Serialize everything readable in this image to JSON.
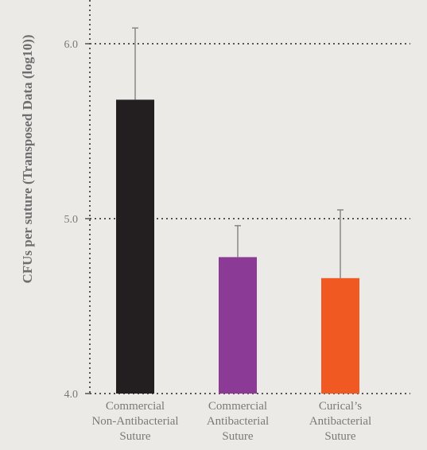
{
  "chart_data": {
    "type": "bar",
    "title": "",
    "xlabel": "",
    "ylabel": "CFUs per suture (Transposed Data (log10))",
    "ylim": [
      4.0,
      6.2
    ],
    "yticks": [
      "4.0",
      "5.0",
      "6.0"
    ],
    "grid": "horizontal dotted at y ticks",
    "legend": "none",
    "categories": [
      [
        "Commercial",
        "Non-Antibacterial",
        "Suture"
      ],
      [
        "Commercial",
        "Antibacterial",
        "Suture"
      ],
      [
        "Curical’s",
        "Antibacterial",
        "Suture"
      ]
    ],
    "values": [
      5.68,
      4.78,
      4.66
    ],
    "error_upper": [
      6.09,
      4.96,
      5.05
    ],
    "colors": [
      "#231f20",
      "#8b3b96",
      "#f05a22"
    ]
  }
}
